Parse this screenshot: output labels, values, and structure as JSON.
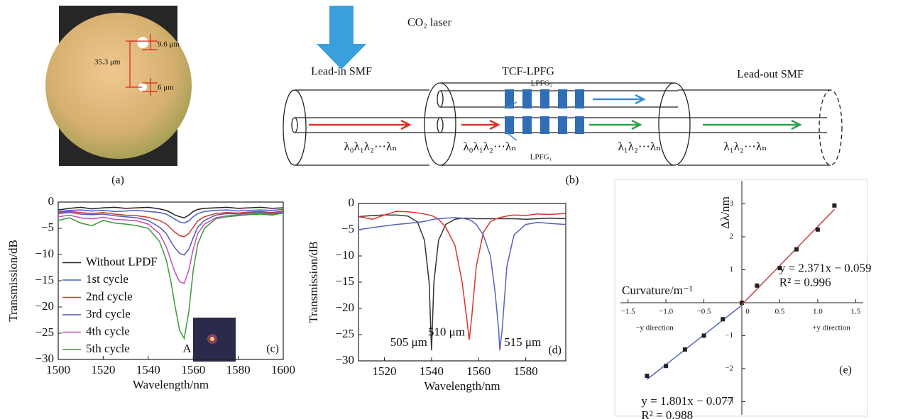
{
  "photo": {
    "labels": [
      "9.6 μm",
      "35.3 μm",
      "6 μm"
    ],
    "caption": "(a)"
  },
  "diagram": {
    "laser": "CO₂ laser",
    "sections": [
      "Lead-in SMF",
      "TCF-LPFG",
      "Lead-out SMF"
    ],
    "gratings": [
      "LPFG₂",
      "LPFG₁"
    ],
    "signals": [
      "λ₀λ₁λ₂⋯λₙ",
      "λ₀λ₁λ₂⋯λₙ",
      "λ₁λ₂⋯λₙ",
      "λ₁λ₂⋯λₙ"
    ],
    "caption": "(b)"
  },
  "chart_data": [
    {
      "type": "line",
      "panel_label": "(c)",
      "xlabel": "Wavelength/nm",
      "ylabel": "Transmission/dB",
      "xlim": [
        1500,
        1600
      ],
      "xticks": [
        1500,
        1520,
        1540,
        1560,
        1580,
        1600
      ],
      "ylim": [
        -30,
        0
      ],
      "yticks": [
        0,
        {
          "value": -5,
          "label": "−5"
        },
        {
          "value": -10,
          "label": "−10"
        },
        {
          "value": -15,
          "label": "−15"
        },
        {
          "value": -20,
          "label": "−20"
        },
        {
          "value": -25,
          "label": "−25"
        },
        {
          "value": -30,
          "label": "−30"
        }
      ],
      "legend": "lower left",
      "annotations": [
        "A"
      ],
      "x": [
        1500,
        1505,
        1510,
        1515,
        1520,
        1525,
        1530,
        1535,
        1540,
        1545,
        1548,
        1550,
        1552,
        1554,
        1556,
        1558,
        1560,
        1562,
        1565,
        1570,
        1575,
        1580,
        1585,
        1590,
        1595,
        1600
      ],
      "series": [
        {
          "name": "Without LPDF",
          "color": "#222222",
          "values": [
            -1.5,
            -1.2,
            -1.0,
            -1.3,
            -1.1,
            -1.0,
            -1.2,
            -1.1,
            -1.0,
            -1.3,
            -1.6,
            -2.0,
            -2.5,
            -2.8,
            -3.0,
            -2.5,
            -1.8,
            -1.4,
            -1.2,
            -1.1,
            -1.0,
            -1.2,
            -1.1,
            -1.0,
            -1.2,
            -1.1
          ]
        },
        {
          "name": "1st cycle",
          "color": "#4a5cc8",
          "values": [
            -1.8,
            -1.6,
            -1.5,
            -1.7,
            -1.6,
            -1.8,
            -1.7,
            -1.6,
            -1.8,
            -2.0,
            -2.3,
            -2.8,
            -3.3,
            -3.8,
            -4.0,
            -3.6,
            -2.8,
            -2.2,
            -1.8,
            -1.6,
            -1.5,
            -1.7,
            -1.6,
            -1.5,
            -1.6,
            -1.4
          ]
        },
        {
          "name": "2nd cycle",
          "color": "#d0382e",
          "values": [
            -2.0,
            -1.8,
            -2.0,
            -2.2,
            -2.0,
            -2.3,
            -2.5,
            -2.6,
            -2.9,
            -3.5,
            -4.2,
            -5.0,
            -5.8,
            -6.4,
            -6.6,
            -6.0,
            -4.8,
            -3.6,
            -2.8,
            -2.2,
            -2.0,
            -2.1,
            -1.9,
            -1.8,
            -2.0,
            -1.7
          ]
        },
        {
          "name": "3rd cycle",
          "color": "#5656b4",
          "values": [
            -2.2,
            -2.0,
            -2.3,
            -2.4,
            -2.3,
            -2.6,
            -2.8,
            -3.0,
            -3.5,
            -4.8,
            -6.0,
            -7.5,
            -8.8,
            -9.8,
            -10.1,
            -9.0,
            -6.8,
            -4.8,
            -3.5,
            -2.5,
            -2.2,
            -2.3,
            -2.1,
            -2.0,
            -2.2,
            -1.9
          ]
        },
        {
          "name": "4th cycle",
          "color": "#c24dbd",
          "values": [
            -2.8,
            -2.5,
            -3.0,
            -3.2,
            -2.9,
            -3.3,
            -3.4,
            -3.6,
            -4.2,
            -6.0,
            -8.5,
            -11.0,
            -13.5,
            -15.2,
            -15.5,
            -13.0,
            -9.0,
            -6.0,
            -4.2,
            -3.0,
            -2.6,
            -2.5,
            -2.3,
            -2.2,
            -2.4,
            -2.0
          ]
        },
        {
          "name": "5th cycle",
          "color": "#3a9a3a",
          "values": [
            -3.5,
            -3.0,
            -4.0,
            -4.5,
            -3.5,
            -4.0,
            -4.2,
            -4.5,
            -5.0,
            -7.5,
            -11.0,
            -15.0,
            -20.0,
            -24.5,
            -26.0,
            -21.0,
            -13.0,
            -8.0,
            -5.0,
            -3.2,
            -2.8,
            -2.6,
            -2.4,
            -2.3,
            -2.5,
            -2.1
          ]
        }
      ]
    },
    {
      "type": "line",
      "panel_label": "(d)",
      "xlabel": "Wavelength/nm",
      "ylabel": "Transmission/dB",
      "xlim": [
        1509,
        1597
      ],
      "xticks": [
        1520,
        1540,
        1560,
        1580
      ],
      "ylim": [
        -30,
        0
      ],
      "yticks": [
        0,
        {
          "value": -5,
          "label": "−5"
        },
        {
          "value": -10,
          "label": "−10"
        },
        {
          "value": -15,
          "label": "−15"
        },
        {
          "value": -20,
          "label": "−20"
        },
        {
          "value": -25,
          "label": "−25"
        },
        {
          "value": -30,
          "label": "−30"
        }
      ],
      "annotations": [
        "505 μm",
        "510 μm",
        "515 μm"
      ],
      "x": [
        1509,
        1515,
        1520,
        1525,
        1530,
        1534,
        1537,
        1539,
        1540,
        1541,
        1543,
        1546,
        1550,
        1553,
        1555,
        1556,
        1557,
        1559,
        1562,
        1565,
        1567,
        1568.5,
        1569,
        1570,
        1572,
        1575,
        1580,
        1585,
        1590,
        1597
      ],
      "series": [
        {
          "color": "#333333",
          "values": [
            -2.5,
            -2.3,
            -2.2,
            -2.2,
            -2.4,
            -3.5,
            -7,
            -15,
            -28,
            -15,
            -7,
            -4,
            -3,
            -2.8,
            -2.8,
            -2.8,
            -2.8,
            -2.9,
            -2.9,
            -2.9,
            -2.9,
            -2.9,
            -2.9,
            -2.9,
            -2.9,
            -2.9,
            -3.0,
            -2.9,
            -2.8,
            -2.9
          ]
        },
        {
          "color": "#d9342b",
          "values": [
            -2.5,
            -3.0,
            -2.2,
            -1.5,
            -1.6,
            -1.8,
            -2.0,
            -2.2,
            -2.3,
            -2.5,
            -3.0,
            -4.5,
            -8,
            -15,
            -22,
            -26,
            -22,
            -12,
            -5.5,
            -3.5,
            -3.0,
            -2.8,
            -2.7,
            -2.6,
            -2.4,
            -2.2,
            -2.3,
            -2.0,
            -2.1,
            -1.9
          ]
        },
        {
          "color": "#5560c0",
          "values": [
            -5,
            -4.6,
            -4.3,
            -4,
            -3.8,
            -3.6,
            -3.4,
            -3.2,
            -3.1,
            -3.0,
            -2.9,
            -2.8,
            -2.7,
            -2.8,
            -3.0,
            -3.1,
            -3.3,
            -4,
            -6,
            -10,
            -17,
            -24,
            -28,
            -24,
            -12,
            -6,
            -4,
            -3.6,
            -3.8,
            -4.0
          ]
        }
      ]
    },
    {
      "type": "scatter",
      "panel_label": "(e)",
      "xlabel": "Curvature/m⁻¹",
      "ylabel": "Δλ/nm",
      "direction_labels": [
        "−y direction",
        "+y direction"
      ],
      "xlim": [
        -1.6,
        1.6
      ],
      "xticks": [
        {
          "value": -1.5,
          "label": "−1.5"
        },
        {
          "value": -1,
          "label": "−1.0"
        },
        {
          "value": -0.5,
          "label": "−0.5"
        },
        0,
        0.5,
        {
          "value": 1,
          "label": "1.0"
        },
        1.5
      ],
      "ylim": [
        -3.4,
        3.7
      ],
      "yticks": [
        {
          "value": -3,
          "label": "−3"
        },
        {
          "value": -2,
          "label": "−2"
        },
        {
          "value": -1,
          "label": "−1"
        },
        1,
        2,
        3
      ],
      "series": [
        {
          "color": "#222222",
          "x": [
            -1.25,
            -1,
            -0.75,
            -0.5,
            -0.25,
            0
          ],
          "values": [
            -2.22,
            -1.92,
            -1.42,
            -1.0,
            -0.5,
            0
          ],
          "fit": {
            "color": "#5b6fc0",
            "slope": 1.801,
            "intercept": -0.077,
            "equation": "y = 1.801x − 0.077",
            "r2": "R² = 0.988"
          }
        },
        {
          "color": "#222222",
          "x": [
            0.2,
            0.5,
            0.72,
            1.0,
            1.22
          ],
          "values": [
            0.52,
            1.05,
            1.62,
            2.22,
            2.95
          ],
          "fit": {
            "color": "#c0504d",
            "slope": 2.371,
            "intercept": -0.059,
            "equation": "y = 2.371x − 0.059",
            "r2": "R² = 0.996"
          }
        }
      ]
    }
  ]
}
